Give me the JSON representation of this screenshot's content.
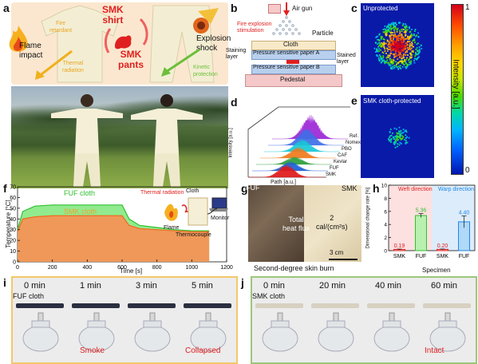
{
  "panels": {
    "a": {
      "label": "a",
      "flame_impact": "Flame\nimpact",
      "fire_retardant": "Fire\nretardant",
      "thermal_radiation": "Thermal\nradiation",
      "smk_shirt": "SMK\nshirt",
      "smk_pants": "SMK\npants",
      "explosion_shock": "Explosion\nshock",
      "kinetic_protection": "Kinetic\nprotection",
      "colors": {
        "bg": "#fde9cf",
        "shirt": "#f4efcf",
        "red": "#e02020",
        "yellow": "#f0b020",
        "green": "#6bbf3a"
      }
    },
    "b": {
      "label": "b",
      "air_gun": "Air gun",
      "fire_explosion": "Fire explosion\nstimulation",
      "particle": "Particle",
      "cloth": "Cloth",
      "staining_layer": "Staining\nlayer",
      "paper_a": "Pressure sensitive paper A",
      "paper_b": "Pressure sensitive paper B",
      "stained_layer": "Stained\nlayer",
      "pedestal": "Pedestal"
    },
    "c": {
      "label": "c",
      "title": "Unprotected"
    },
    "colorbar": {
      "ticks": [
        "1",
        "0"
      ],
      "axis_label": "Intensity [a.u.]"
    },
    "d": {
      "label": "d",
      "ylabel": "Intensity [a.u.]",
      "xlabel": "Path [a.u.]",
      "series": [
        "Ref.",
        "Nomex",
        "PBO",
        "CAF",
        "Kevlar",
        "FUF",
        "SMK"
      ],
      "colors": [
        "#9c27d6",
        "#3f6ee8",
        "#18c8d6",
        "#f07a1c",
        "#2e9e3a",
        "#1c5fd6",
        "#e01818"
      ]
    },
    "e": {
      "label": "e",
      "title": "SMK cloth-protected"
    },
    "f": {
      "label": "f",
      "ylabel": "Temperature [°C]",
      "xlabel": "Time [s]",
      "fuf": "FUF cloth",
      "smk": "SMK cloth",
      "thermal_radiation": "Thermal radiation",
      "cloth": "Cloth",
      "flame": "Flame",
      "monitor": "Monitor",
      "thermocouple": "Thermocouple",
      "xticks": [
        "0",
        "200",
        "400",
        "600",
        "800",
        "1000",
        "1200"
      ],
      "yticks": [
        "0",
        "10",
        "20",
        "30",
        "40",
        "50",
        "60",
        "70"
      ]
    },
    "g": {
      "label": "g",
      "fuf": "FUF",
      "smk": "SMK",
      "total_heat_flux": "Total\nheat flux",
      "value": "2\ncal/(cm²s)",
      "scale": "3 cm",
      "caption": "Second-degree skin burn"
    },
    "h": {
      "label": "h",
      "ylabel": "Dimensional change rate [%]",
      "xlabel": "Specimen",
      "weft": "Weft direction",
      "warp": "Warp direction",
      "yticks": [
        "0",
        "2",
        "4",
        "6",
        "8",
        "10"
      ]
    },
    "i": {
      "label": "i",
      "times": [
        "0 min",
        "1 min",
        "3 min",
        "5 min"
      ],
      "sample": "FUF cloth",
      "notes": [
        "",
        "Smoke",
        "",
        "Collapsed"
      ]
    },
    "j": {
      "label": "j",
      "times": [
        "0 min",
        "20 min",
        "40 min",
        "60 min"
      ],
      "sample": "SMK cloth",
      "notes": [
        "",
        "",
        "",
        "Intact"
      ]
    }
  },
  "chart_data": [
    {
      "type": "line",
      "title": "",
      "xlabel": "Time [s]",
      "ylabel": "Temperature [°C]",
      "xlim": [
        0,
        1200
      ],
      "ylim": [
        0,
        70
      ],
      "series": [
        {
          "name": "FUF cloth",
          "x": [
            0,
            30,
            100,
            200,
            300,
            400,
            500,
            600,
            640,
            700,
            800,
            900,
            1000,
            1100
          ],
          "y": [
            30,
            47,
            52,
            53,
            53,
            53,
            53,
            53,
            40,
            34,
            32,
            30,
            29,
            29
          ]
        },
        {
          "name": "SMK cloth",
          "x": [
            0,
            30,
            100,
            200,
            300,
            400,
            500,
            600,
            640,
            700,
            800,
            900,
            1000,
            1100
          ],
          "y": [
            28,
            40,
            42,
            43,
            43,
            43,
            43,
            43,
            34,
            31,
            30,
            29,
            28,
            28
          ]
        }
      ]
    },
    {
      "type": "bar",
      "title": "",
      "xlabel": "Specimen",
      "ylabel": "Dimensional change rate [%]",
      "ylim": [
        0,
        10
      ],
      "categories": [
        "SMK",
        "FUF",
        "SMK",
        "FUF"
      ],
      "groups": [
        "Weft direction",
        "Weft direction",
        "Wrap direction",
        "Wrap direction"
      ],
      "values": [
        0.19,
        5.36,
        0.2,
        4.4
      ],
      "value_labels": [
        "0.19",
        "5.36",
        "0.20",
        "4.40"
      ],
      "errors": [
        0.05,
        0.3,
        0.05,
        0.9
      ]
    }
  ]
}
